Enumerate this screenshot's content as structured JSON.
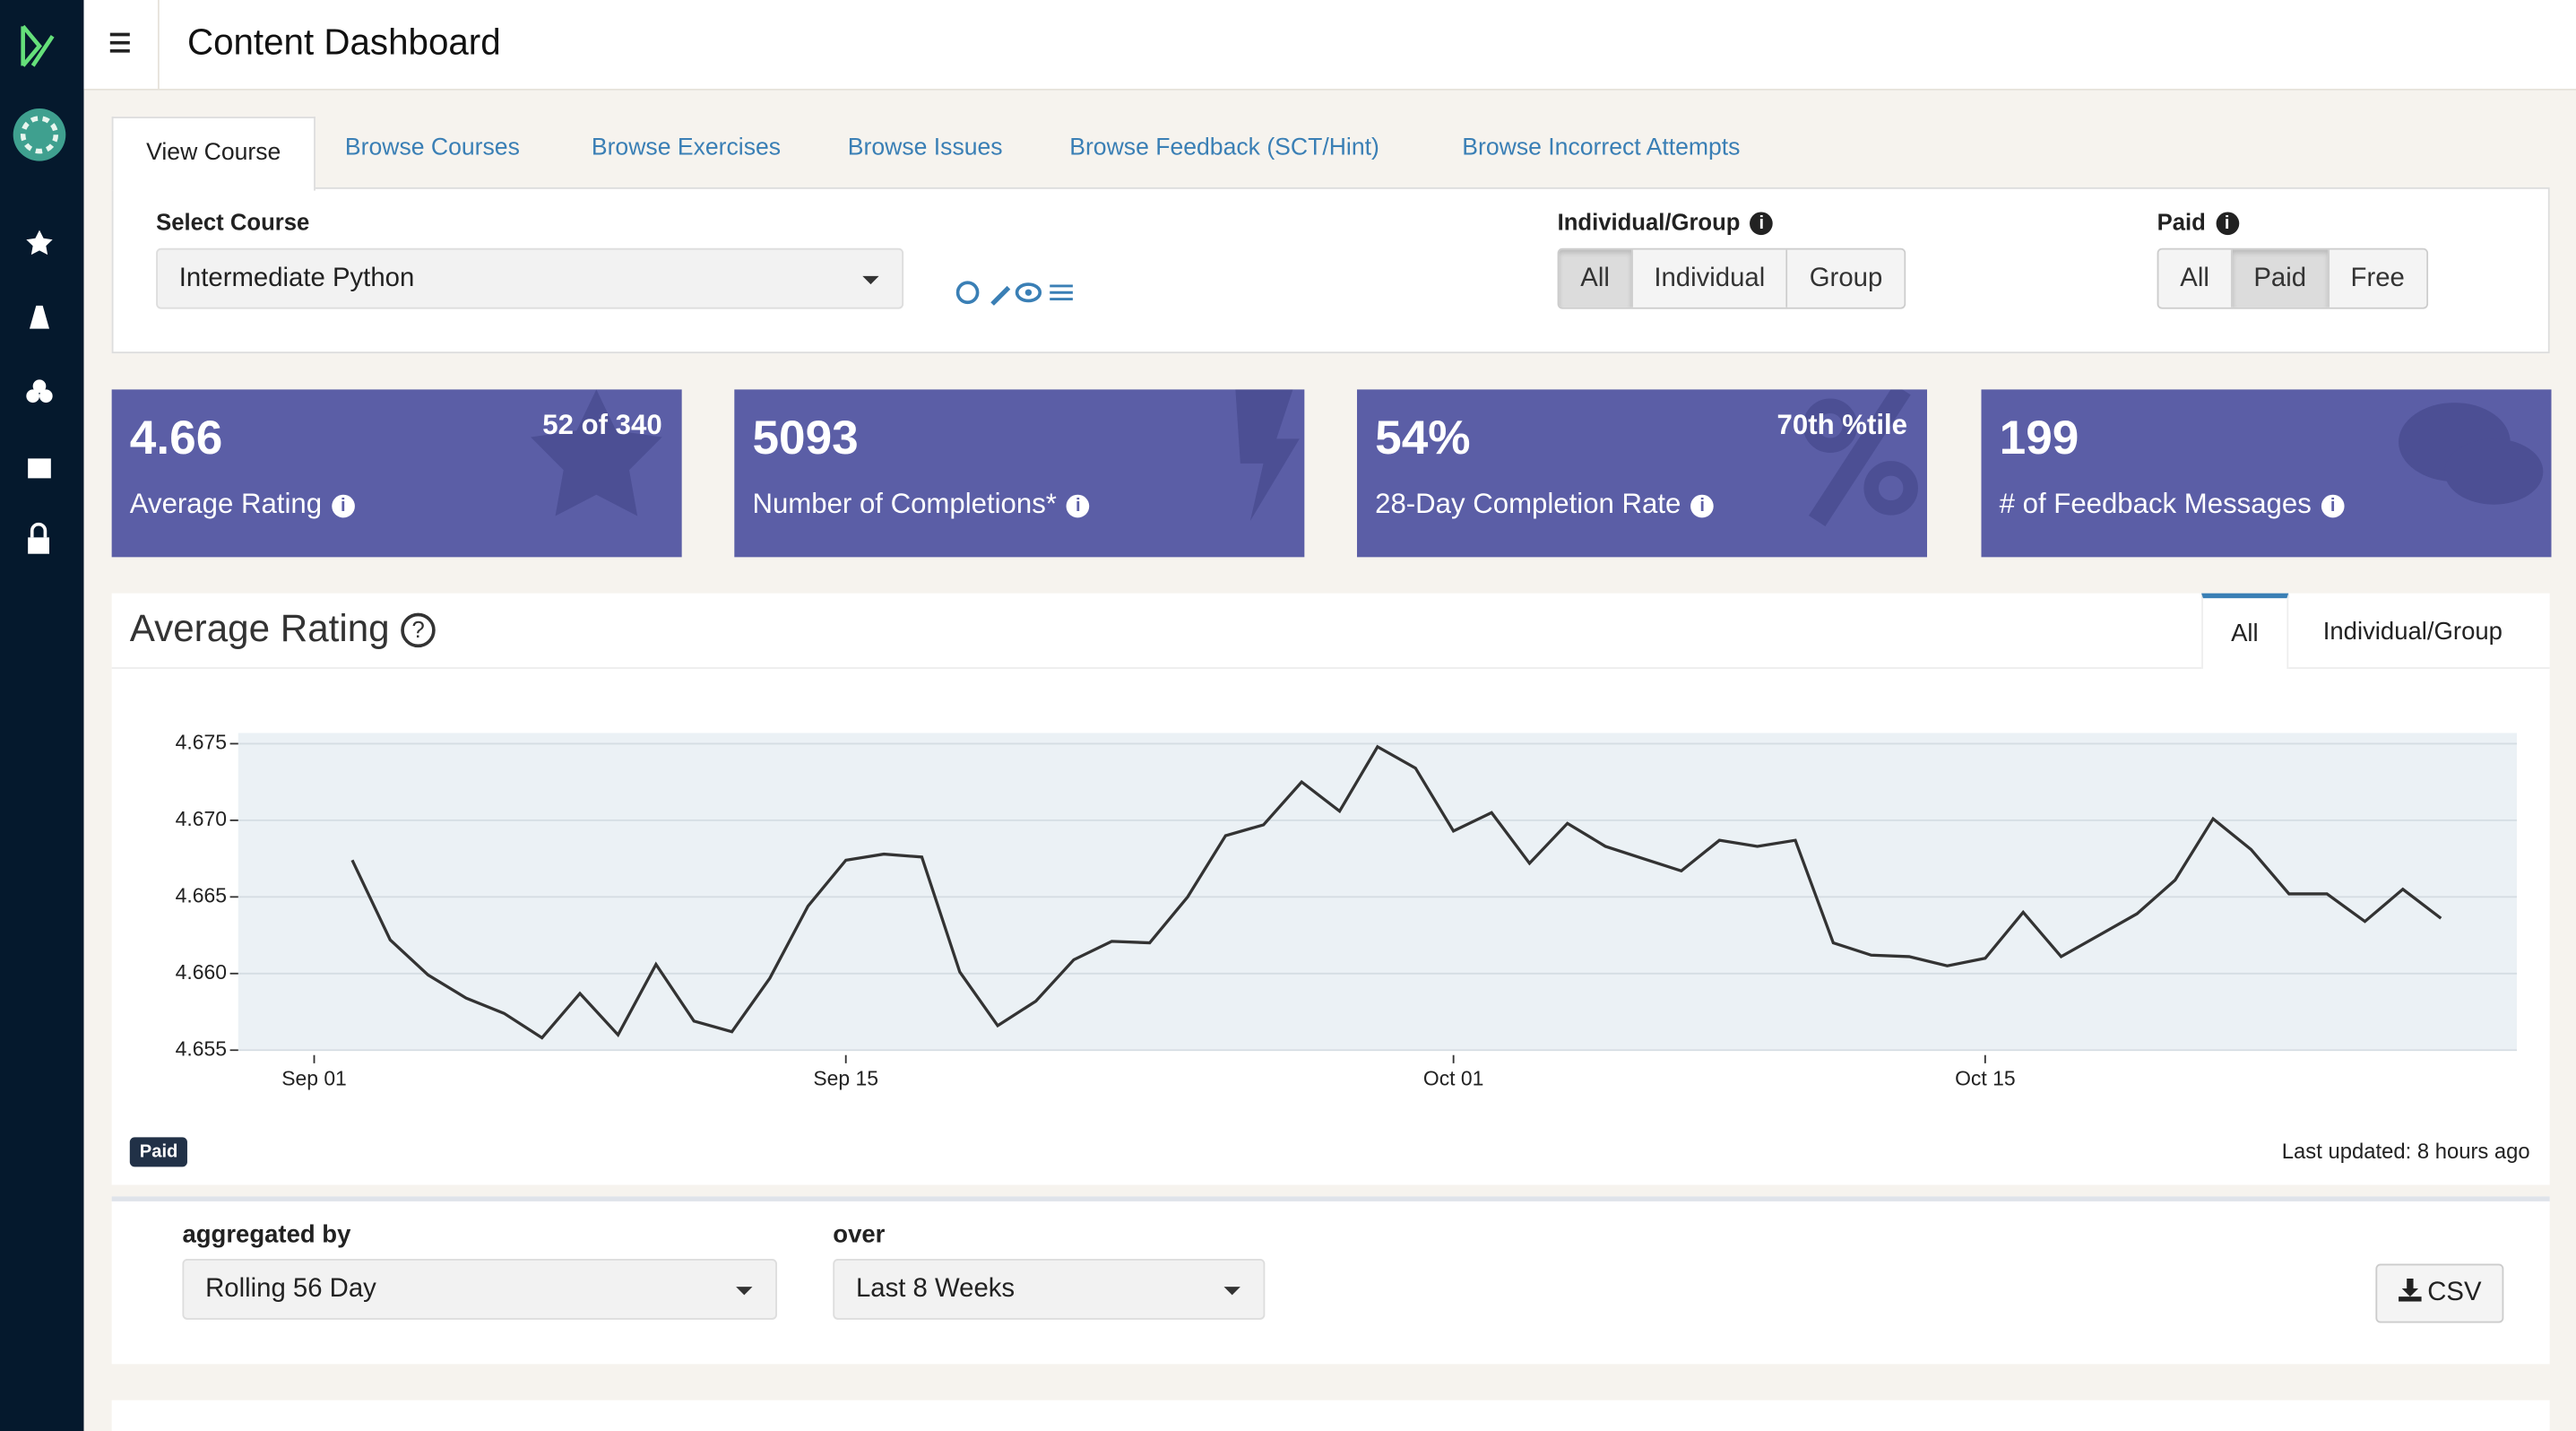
{
  "header": {
    "title": "Content Dashboard"
  },
  "tabs": [
    "View Course",
    "Browse Courses",
    "Browse Exercises",
    "Browse Issues",
    "Browse Feedback (SCT/Hint)",
    "Browse Incorrect Attempts"
  ],
  "filters": {
    "course": {
      "label": "Select Course",
      "value": "Intermediate Python"
    },
    "group": {
      "label": "Individual/Group",
      "options": [
        "All",
        "Individual",
        "Group"
      ],
      "selected": 0
    },
    "paid": {
      "label": "Paid",
      "options": [
        "All",
        "Paid",
        "Free"
      ],
      "selected": 1
    }
  },
  "stats": [
    {
      "value": 4.66,
      "label": "Average Rating",
      "badge": "52 of 340"
    },
    {
      "value": 5093,
      "label": "Number of Completions*"
    },
    {
      "value": "54%",
      "label": "28-Day Completion Rate",
      "badge": "70th %tile"
    },
    {
      "value": 199,
      "label": "# of Feedback Messages"
    }
  ],
  "panel": {
    "title": "Average Rating",
    "tabs": [
      "All",
      "Individual/Group"
    ],
    "active": 0,
    "tag": "Paid",
    "updated": "Last updated: 8 hours ago"
  },
  "chart": {
    "type": "line",
    "color": "#333333",
    "grid": true,
    "x": [
      "09-02",
      "09-03",
      "09-04",
      "09-05",
      "09-06",
      "09-07",
      "09-08",
      "09-09",
      "09-10",
      "09-11",
      "09-12",
      "09-13",
      "09-14",
      "09-15",
      "09-16",
      "09-17",
      "09-18",
      "09-19",
      "09-20",
      "09-21",
      "09-22",
      "09-23",
      "09-24",
      "09-25",
      "09-26",
      "09-27",
      "09-28",
      "09-29",
      "09-30",
      "10-01",
      "10-02",
      "10-03",
      "10-04",
      "10-05",
      "10-06",
      "10-07",
      "10-08",
      "10-09",
      "10-10",
      "10-11",
      "10-12",
      "10-13",
      "10-14",
      "10-15",
      "10-16",
      "10-17",
      "10-18",
      "10-19",
      "10-20",
      "10-21",
      "10-22",
      "10-23",
      "10-24",
      "10-25",
      "10-26",
      "10-27"
    ],
    "values": [
      4.6674,
      4.6622,
      4.6599,
      4.6584,
      4.6574,
      4.6558,
      4.6587,
      4.656,
      4.6606,
      4.6569,
      4.6562,
      4.6597,
      4.6644,
      4.6674,
      4.6678,
      4.6676,
      4.6601,
      4.6566,
      4.6582,
      4.6609,
      4.6621,
      4.662,
      4.665,
      4.669,
      4.6697,
      4.6725,
      4.6706,
      4.6748,
      4.6734,
      4.6693,
      4.6705,
      4.6672,
      4.6698,
      4.6683,
      4.6675,
      4.6667,
      4.6687,
      4.6683,
      4.6687,
      4.662,
      4.6612,
      4.6611,
      4.6605,
      4.661,
      4.664,
      4.6611,
      4.6625,
      4.6639,
      4.6661,
      4.6701,
      4.6681,
      4.6652,
      4.6652,
      4.6634,
      4.6655,
      4.6636
    ],
    "xlim": [
      "08-30",
      "10-29"
    ],
    "xticks": [
      {
        "value": "09-01",
        "label": "Sep 01"
      },
      {
        "value": "09-15",
        "label": "Sep 15"
      },
      {
        "value": "10-01",
        "label": "Oct 01"
      },
      {
        "value": "10-15",
        "label": "Oct 15"
      }
    ],
    "ylim": [
      4.655,
      4.6757
    ],
    "yticks": [
      4.655,
      {
        "value": 4.66,
        "label": "4.660"
      },
      4.665,
      {
        "value": 4.67,
        "label": "4.670"
      },
      4.675
    ]
  },
  "controls": {
    "aggregated": {
      "label": "aggregated by",
      "value": "Rolling 56 Day"
    },
    "over": {
      "label": "over",
      "value": "Last 8 Weeks"
    },
    "download": "CSV"
  }
}
